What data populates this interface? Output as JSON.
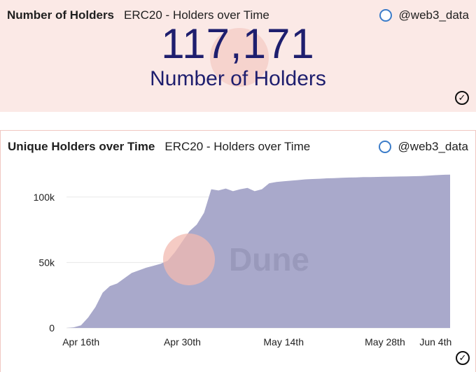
{
  "counter_panel": {
    "title": "Number of Holders",
    "subtitle": "ERC20 - Holders over Time",
    "author": "@web3_data",
    "value": "117,171",
    "value_label": "Number of Holders"
  },
  "chart_panel": {
    "title": "Unique Holders over Time",
    "subtitle": "ERC20 - Holders over Time",
    "author": "@web3_data",
    "watermark": "Dune"
  },
  "colors": {
    "area_fill": "#a9a9cb",
    "counter_bg": "#fbe9e6",
    "number_color": "#1e1e6e",
    "watermark_circle": "#f2b9b0"
  },
  "chart_data": {
    "type": "area",
    "x": [
      "Apr 14",
      "Apr 15",
      "Apr 16",
      "Apr 17",
      "Apr 18",
      "Apr 19",
      "Apr 20",
      "Apr 21",
      "Apr 22",
      "Apr 23",
      "Apr 24",
      "Apr 25",
      "Apr 26",
      "Apr 27",
      "Apr 28",
      "Apr 29",
      "Apr 30",
      "May 1",
      "May 2",
      "May 3",
      "May 4",
      "May 5",
      "May 6",
      "May 7",
      "May 8",
      "May 9",
      "May 10",
      "May 11",
      "May 12",
      "May 13",
      "May 14",
      "May 15",
      "May 16",
      "May 17",
      "May 18",
      "May 19",
      "May 20",
      "May 21",
      "May 22",
      "May 23",
      "May 24",
      "May 25",
      "May 26",
      "May 27",
      "May 28",
      "May 29",
      "May 30",
      "May 31",
      "Jun 1",
      "Jun 2",
      "Jun 3",
      "Jun 4",
      "Jun 5",
      "Jun 6"
    ],
    "y": [
      0,
      500,
      2000,
      8000,
      16000,
      27000,
      32000,
      34000,
      38000,
      42000,
      44000,
      46000,
      47500,
      49000,
      51500,
      58000,
      66000,
      74000,
      79000,
      88000,
      106000,
      105000,
      106500,
      104500,
      106000,
      107000,
      104500,
      106000,
      110500,
      111500,
      112000,
      112500,
      113000,
      113500,
      113800,
      114000,
      114300,
      114500,
      114700,
      114900,
      115000,
      115200,
      115300,
      115400,
      115500,
      115600,
      115700,
      115800,
      115900,
      116100,
      116400,
      116700,
      117000,
      117171
    ],
    "x_ticks": [
      "Apr 16th",
      "Apr 30th",
      "May 14th",
      "May 28th",
      "Jun 4th"
    ],
    "x_tick_dates": [
      "Apr 16",
      "Apr 30",
      "May 14",
      "May 28",
      "Jun 4"
    ],
    "y_ticks": [
      "0",
      "50k",
      "100k"
    ],
    "y_tick_values": [
      0,
      50000,
      100000
    ],
    "ylim": [
      0,
      125000
    ],
    "grid": true,
    "title": "Unique Holders over Time",
    "xlabel": "",
    "ylabel": ""
  }
}
